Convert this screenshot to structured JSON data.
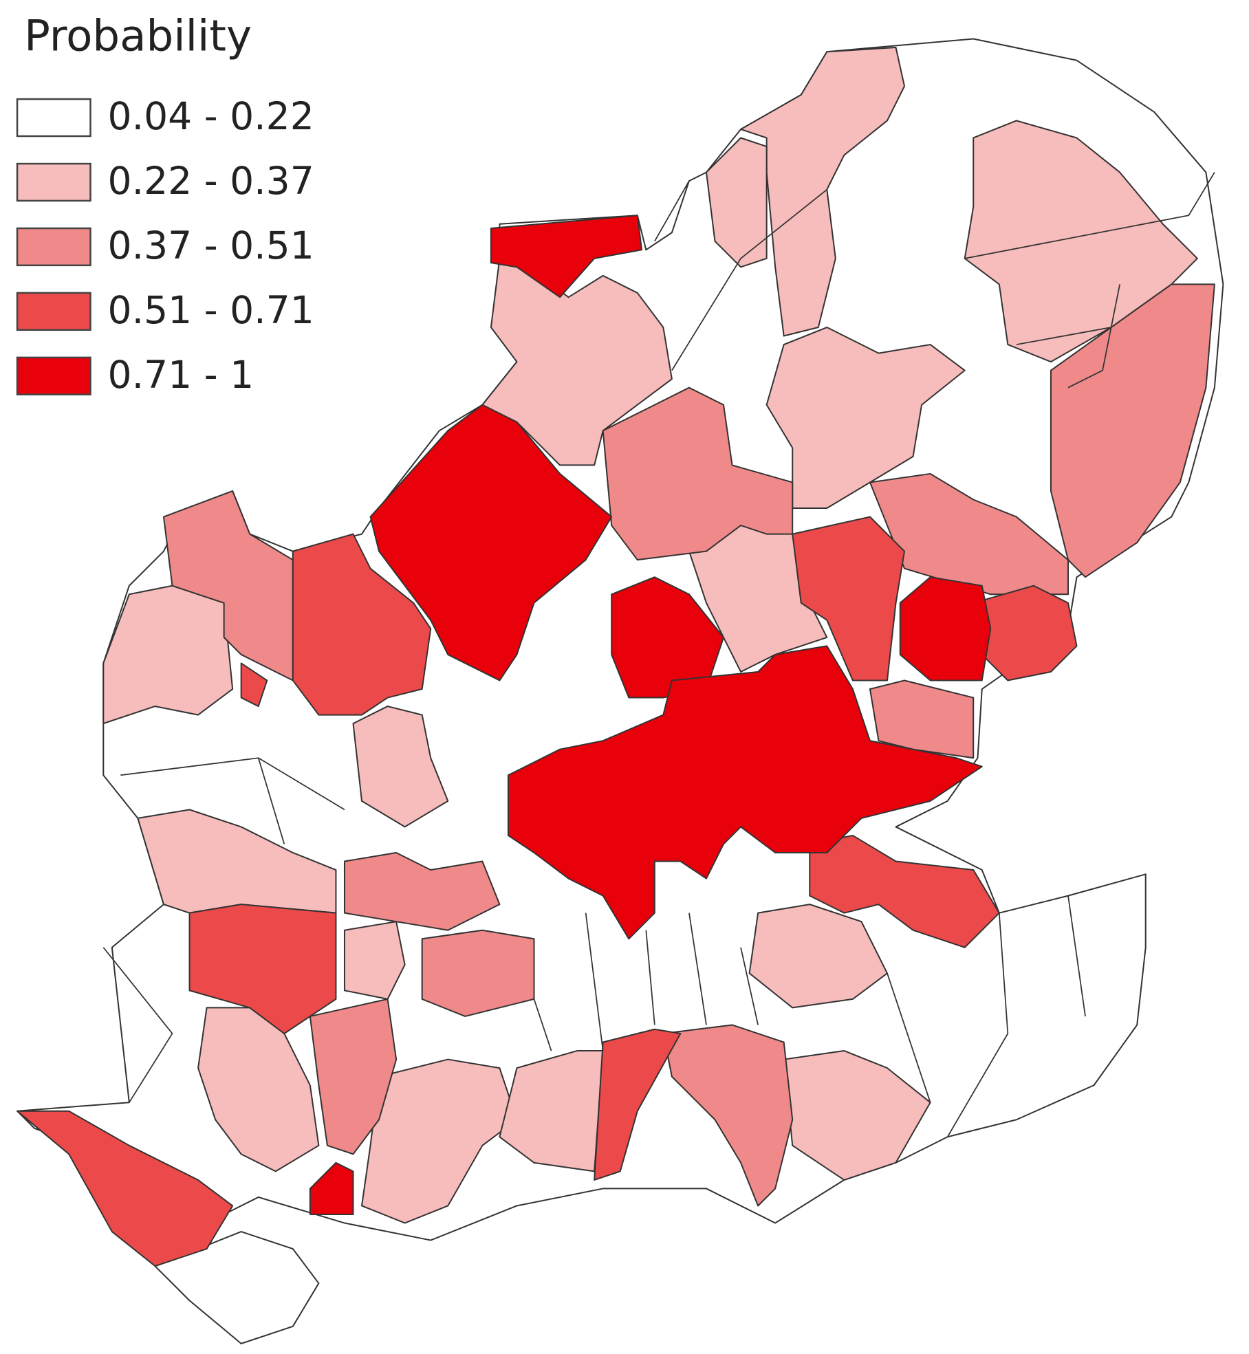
{
  "legend": {
    "title": "Probability",
    "items": [
      {
        "label": "0.04 - 0.22",
        "color": "#ffffff"
      },
      {
        "label": "0.22 - 0.37",
        "color": "#f7bcbc"
      },
      {
        "label": "0.37 - 0.51",
        "color": "#f08a8a"
      },
      {
        "label": "0.51 - 0.71",
        "color": "#ec4a4a"
      },
      {
        "label": "0.71 - 1",
        "color": "#e8000a"
      }
    ]
  }
}
